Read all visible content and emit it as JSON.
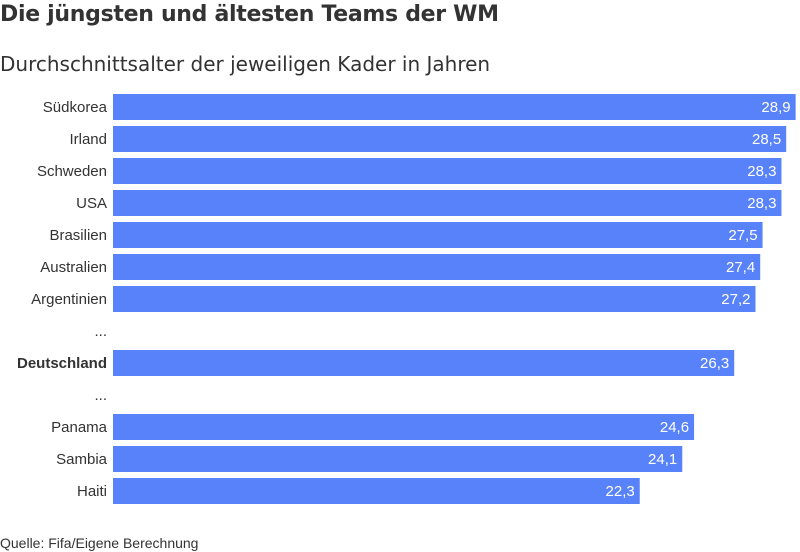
{
  "title": "Die jüngsten und ältesten Teams der WM",
  "subtitle": "Durchschnittsalter der jeweiligen Kader in Jahren",
  "source": "Quelle: Fifa/Eigene Berechnung",
  "colors": {
    "bar": "#5882fa",
    "value_label": "#ffffff",
    "category_label": "#333333"
  },
  "chart_data": {
    "type": "bar",
    "orientation": "horizontal",
    "rows": [
      {
        "category": "Südkorea",
        "value": 28.9,
        "label": "28,9"
      },
      {
        "category": "Irland",
        "value": 28.5,
        "label": "28,5"
      },
      {
        "category": "Schweden",
        "value": 28.3,
        "label": "28,3"
      },
      {
        "category": "USA",
        "value": 28.3,
        "label": "28,3"
      },
      {
        "category": "Brasilien",
        "value": 27.5,
        "label": "27,5"
      },
      {
        "category": "Australien",
        "value": 27.4,
        "label": "27,4"
      },
      {
        "category": "Argentinien",
        "value": 27.2,
        "label": "27,2"
      },
      {
        "category": "...",
        "value": null,
        "label": ""
      },
      {
        "category": "Deutschland",
        "value": 26.3,
        "label": "26,3",
        "highlight": true
      },
      {
        "category": "...",
        "value": null,
        "label": ""
      },
      {
        "category": "Panama",
        "value": 24.6,
        "label": "24,6"
      },
      {
        "category": "Sambia",
        "value": 24.1,
        "label": "24,1"
      },
      {
        "category": "Haiti",
        "value": 22.3,
        "label": "22,3"
      }
    ],
    "xlim": [
      0,
      29
    ],
    "grid": false,
    "legend": "none"
  }
}
